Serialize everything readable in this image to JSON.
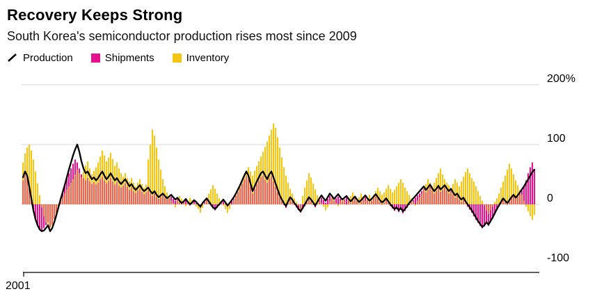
{
  "header": {
    "title": "Recovery Keeps Strong",
    "subtitle": "South Korea's semiconductor production rises most since 2009"
  },
  "chart_data": {
    "type": "bar",
    "subtype": "monthly bars (Shipments, Inventory) with Production line overlay, YoY % change",
    "frequency": "monthly",
    "x_start": "2001-01",
    "x_end": "2021-06",
    "unit": "%",
    "ylim": [
      -130,
      230
    ],
    "grid": "horizontal gridlines at 200, 100, 0; labels on right",
    "legend_position": "top-left",
    "y_ticks": [
      {
        "label": "200%",
        "value": 200
      },
      {
        "label": "100",
        "value": 100
      },
      {
        "label": "0",
        "value": 0
      },
      {
        "label": "-100",
        "value": -100
      }
    ],
    "grid_values": [
      200,
      100,
      0
    ],
    "x_tick_labels": [
      "2001"
    ],
    "colors": {
      "production": "#000000",
      "shipments": "#e4108c",
      "inventory": "#f5c513",
      "overlap": "#e8684f",
      "grid": "#d5d5d5",
      "axis": "#000000"
    },
    "series": [
      {
        "name": "Production",
        "type": "line",
        "values": [
          45,
          55,
          48,
          30,
          10,
          -10,
          -25,
          -35,
          -42,
          -45,
          -44,
          -40,
          -35,
          -45,
          -40,
          -30,
          -18,
          -5,
          8,
          20,
          32,
          45,
          58,
          70,
          82,
          92,
          100,
          88,
          72,
          60,
          52,
          55,
          48,
          42,
          45,
          40,
          44,
          50,
          55,
          48,
          42,
          46,
          52,
          46,
          40,
          44,
          38,
          34,
          38,
          42,
          36,
          30,
          34,
          28,
          24,
          28,
          32,
          26,
          22,
          25,
          28,
          22,
          18,
          22,
          16,
          12,
          15,
          18,
          14,
          10,
          13,
          16,
          12,
          8,
          11,
          6,
          2,
          5,
          9,
          4,
          0,
          3,
          7,
          4,
          0,
          -4,
          2,
          6,
          10,
          5,
          0,
          -5,
          -8,
          -4,
          0,
          4,
          8,
          3,
          -2,
          2,
          7,
          12,
          18,
          25,
          32,
          40,
          48,
          55,
          48,
          35,
          22,
          30,
          38,
          45,
          52,
          55,
          48,
          42,
          50,
          55,
          45,
          35,
          25,
          15,
          8,
          2,
          -3,
          5,
          12,
          8,
          2,
          -2,
          -8,
          -12,
          -6,
          0,
          6,
          12,
          8,
          3,
          -2,
          4,
          10,
          15,
          10,
          6,
          12,
          18,
          14,
          9,
          13,
          17,
          12,
          8,
          11,
          14,
          9,
          5,
          9,
          13,
          8,
          4,
          7,
          11,
          15,
          10,
          6,
          9,
          13,
          17,
          12,
          7,
          3,
          6,
          10,
          5,
          0,
          -4,
          -8,
          -5,
          -10,
          -6,
          -12,
          -8,
          -3,
          2,
          6,
          10,
          14,
          18,
          22,
          26,
          30,
          24,
          28,
          33,
          27,
          22,
          26,
          31,
          25,
          28,
          32,
          27,
          22,
          26,
          20,
          15,
          18,
          12,
          8,
          11,
          5,
          0,
          -5,
          -10,
          -16,
          -22,
          -28,
          -33,
          -38,
          -35,
          -30,
          -34,
          -28,
          -22,
          -15,
          -8,
          -2,
          4,
          10,
          6,
          2,
          7,
          12,
          16,
          11,
          15,
          20,
          25,
          30,
          36,
          42,
          48,
          54,
          58
        ]
      },
      {
        "name": "Shipments",
        "type": "bar",
        "values": [
          40,
          48,
          42,
          25,
          5,
          -12,
          -25,
          -35,
          -42,
          -44,
          -40,
          -35,
          -30,
          -38,
          -34,
          -25,
          -14,
          -2,
          10,
          22,
          34,
          44,
          52,
          60,
          68,
          75,
          70,
          60,
          50,
          44,
          40,
          44,
          38,
          34,
          37,
          33,
          36,
          42,
          46,
          40,
          35,
          39,
          44,
          38,
          33,
          37,
          31,
          28,
          31,
          35,
          29,
          24,
          28,
          22,
          19,
          23,
          26,
          21,
          17,
          20,
          23,
          18,
          14,
          18,
          12,
          9,
          12,
          15,
          11,
          8,
          10,
          13,
          9,
          6,
          9,
          4,
          1,
          4,
          7,
          2,
          -2,
          1,
          5,
          2,
          -2,
          -6,
          0,
          4,
          8,
          3,
          -2,
          -7,
          -10,
          -6,
          -2,
          2,
          5,
          1,
          -4,
          0,
          5,
          9,
          14,
          20,
          27,
          34,
          41,
          47,
          42,
          30,
          18,
          26,
          33,
          39,
          45,
          48,
          41,
          36,
          43,
          47,
          38,
          29,
          20,
          11,
          5,
          -1,
          -6,
          2,
          9,
          5,
          -1,
          -5,
          -10,
          -14,
          -8,
          -3,
          3,
          9,
          5,
          0,
          -5,
          1,
          7,
          11,
          7,
          3,
          9,
          14,
          10,
          6,
          10,
          13,
          9,
          5,
          8,
          11,
          6,
          2,
          6,
          10,
          5,
          1,
          4,
          8,
          12,
          7,
          3,
          6,
          10,
          13,
          9,
          4,
          0,
          3,
          7,
          2,
          -3,
          -7,
          -11,
          -8,
          -13,
          -9,
          -15,
          -11,
          -6,
          -1,
          3,
          7,
          11,
          15,
          18,
          22,
          26,
          20,
          24,
          29,
          23,
          18,
          22,
          27,
          21,
          24,
          28,
          23,
          18,
          22,
          16,
          11,
          14,
          8,
          4,
          7,
          1,
          -4,
          -9,
          -14,
          -20,
          -26,
          -31,
          -36,
          -40,
          -37,
          -32,
          -36,
          -30,
          -24,
          -17,
          -10,
          -4,
          2,
          8,
          4,
          0,
          5,
          10,
          14,
          9,
          13,
          18,
          23,
          30,
          40,
          52,
          62,
          70,
          58
        ]
      },
      {
        "name": "Inventory",
        "type": "bar",
        "values": [
          70,
          85,
          95,
          100,
          90,
          75,
          55,
          35,
          15,
          -5,
          -20,
          -30,
          -35,
          -40,
          -35,
          -25,
          -15,
          -5,
          5,
          12,
          18,
          25,
          30,
          36,
          42,
          50,
          58,
          52,
          45,
          55,
          65,
          72,
          60,
          50,
          56,
          62,
          70,
          80,
          90,
          82,
          72,
          78,
          86,
          76,
          64,
          70,
          60,
          52,
          46,
          52,
          44,
          38,
          44,
          36,
          30,
          36,
          42,
          34,
          28,
          33,
          75,
          100,
          125,
          115,
          95,
          75,
          58,
          42,
          30,
          20,
          12,
          6,
          2,
          -5,
          8,
          14,
          9,
          3,
          -3,
          5,
          11,
          7,
          1,
          -4,
          -8,
          -14,
          -6,
          2,
          10,
          18,
          25,
          32,
          26,
          18,
          10,
          4,
          -2,
          -8,
          -14,
          -8,
          0,
          8,
          16,
          24,
          32,
          40,
          48,
          56,
          62,
          55,
          48,
          56,
          64,
          72,
          80,
          88,
          96,
          105,
          115,
          125,
          135,
          128,
          112,
          95,
          78,
          62,
          48,
          36,
          26,
          18,
          10,
          4,
          -2,
          -8,
          14,
          28,
          40,
          52,
          45,
          35,
          25,
          15,
          8,
          2,
          -4,
          -10,
          -5,
          6,
          12,
          8,
          2,
          -3,
          5,
          10,
          6,
          0,
          8,
          14,
          20,
          14,
          8,
          12,
          18,
          12,
          6,
          10,
          16,
          10,
          16,
          22,
          28,
          22,
          16,
          20,
          26,
          32,
          26,
          20,
          24,
          30,
          36,
          42,
          36,
          28,
          22,
          16,
          10,
          4,
          -2,
          6,
          12,
          18,
          26,
          34,
          42,
          36,
          30,
          36,
          44,
          52,
          60,
          50,
          42,
          36,
          32,
          26,
          34,
          42,
          36,
          30,
          38,
          46,
          54,
          60,
          52,
          44,
          38,
          30,
          22,
          14,
          6,
          -2,
          -10,
          -16,
          -10,
          -4,
          4,
          10,
          18,
          28,
          38,
          48,
          58,
          68,
          60,
          50,
          40,
          32,
          24,
          16,
          6,
          -4,
          -12,
          -20,
          -26,
          -18
        ]
      }
    ]
  }
}
